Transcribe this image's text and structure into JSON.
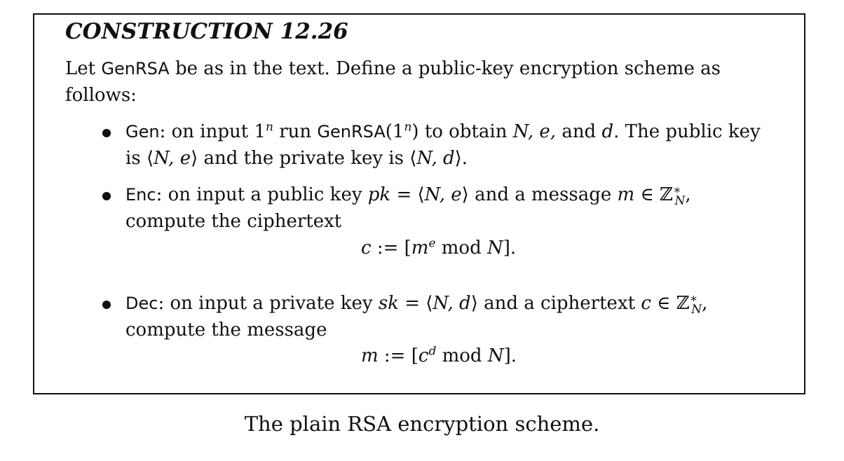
{
  "construction": {
    "title": "CONSTRUCTION 12.26",
    "intro_prefix": "Let",
    "intro_algo": "GenRSA",
    "intro_suffix": "be as in the text. Define a public-key encryption scheme as follows:"
  },
  "items": [
    {
      "name": "Gen",
      "text_1": ": on input",
      "text_2": "run",
      "algo": "GenRSA",
      "text_3": "to obtain",
      "text_4": "and",
      "text_5": ". The public key is",
      "text_6": "and the private key is"
    },
    {
      "name": "Enc",
      "text_1": ": on input a public key",
      "text_2": "and a message",
      "text_3": "compute the ciphertext",
      "formula_lhs": "c",
      "formula_mod": "mod"
    },
    {
      "name": "Dec",
      "text_1": ": on input a private key",
      "text_2": "and a ciphertext",
      "text_3": "compute the message",
      "formula_lhs": "m",
      "formula_mod": "mod"
    }
  ],
  "caption": "The plain RSA encryption scheme."
}
